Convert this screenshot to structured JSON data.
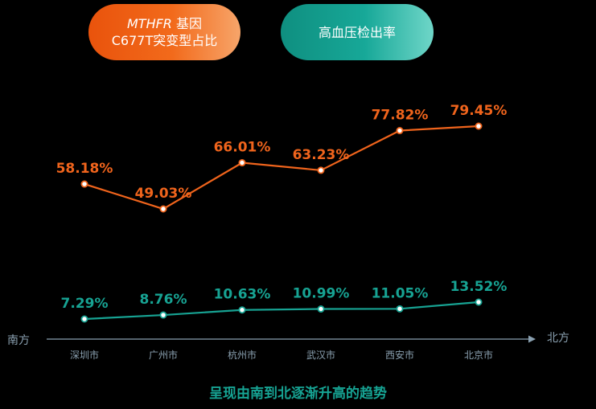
{
  "legend": {
    "orange_line1_italic": "MTHFR",
    "orange_line1_rest": " 基因",
    "orange_line2": "C677T突变型占比",
    "teal": "高血压检出率"
  },
  "axis": {
    "left_label": "南方",
    "right_label": "北方"
  },
  "footer": "呈现由南到北逐渐升高的趋势",
  "colors": {
    "orange": "#f0641c",
    "teal": "#17a393",
    "axis": "#8aa0b0"
  },
  "chart_data": {
    "type": "line",
    "categories": [
      "深圳市",
      "广州市",
      "杭州市",
      "武汉市",
      "西安市",
      "北京市"
    ],
    "series": [
      {
        "name": "MTHFR 基因 C677T突变型占比",
        "values": [
          58.18,
          49.03,
          66.01,
          63.23,
          77.82,
          79.45
        ],
        "labels": [
          "58.18%",
          "49.03%",
          "66.01%",
          "63.23%",
          "77.82%",
          "79.45%"
        ],
        "color": "#f0641c"
      },
      {
        "name": "高血压检出率",
        "values": [
          7.29,
          8.76,
          10.63,
          10.99,
          11.05,
          13.52
        ],
        "labels": [
          "7.29%",
          "8.76%",
          "10.63%",
          "10.99%",
          "11.05%",
          "13.52%"
        ],
        "color": "#17a393"
      }
    ],
    "xlabel": "",
    "ylabel": "",
    "grid": false
  }
}
